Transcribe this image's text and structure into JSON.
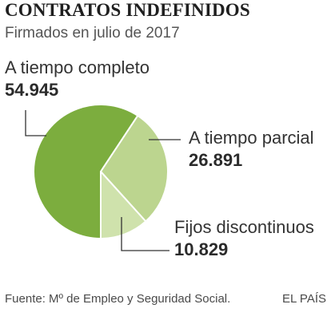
{
  "header": {
    "title": "CONTRATOS INDEFINIDOS",
    "subtitle": "Firmados en julio de 2017"
  },
  "footer": {
    "source": "Fuente: Mº de Empleo y Seguridad Social.",
    "brand": "EL PAÍS"
  },
  "chart_data": {
    "type": "pie",
    "title": "CONTRATOS INDEFINIDOS",
    "subtitle": "Firmados en julio de 2017",
    "slices": [
      {
        "label": "A tiempo completo",
        "value": 54945,
        "value_label": "54.945",
        "color": "#7cad3e"
      },
      {
        "label": "A tiempo parcial",
        "value": 26891,
        "value_label": "26.891",
        "color": "#bcd58f"
      },
      {
        "label": "Fijos discontinuos",
        "value": 10829,
        "value_label": "10.829",
        "color": "#cfe2ac"
      }
    ],
    "start_angle_deg": 180,
    "direction": "clockwise",
    "separator_color": "#ffffff",
    "leader_color": "#333333"
  }
}
